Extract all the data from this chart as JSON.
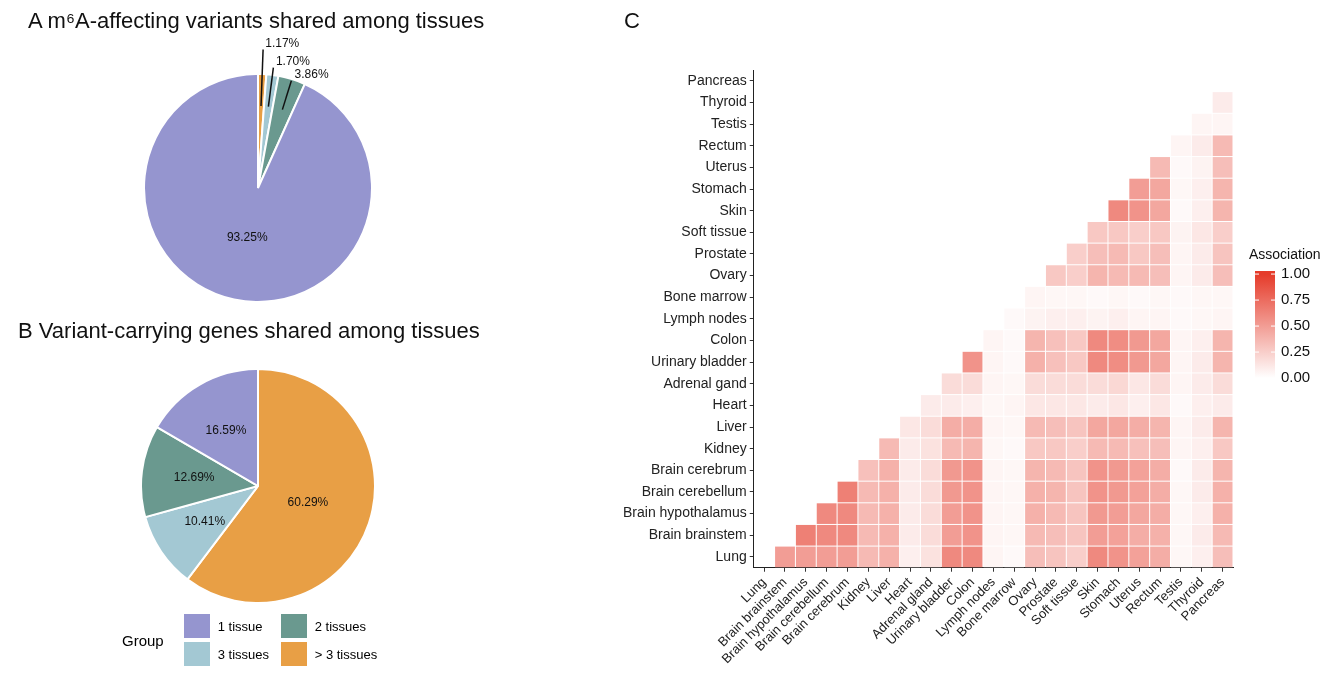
{
  "chart_data": [
    {
      "type": "pie",
      "title": "A  m⁶A-affecting variants shared among tissues",
      "values": [
        93.25,
        3.86,
        1.7,
        1.17
      ],
      "colors": [
        "#9595cf",
        "#6a998f",
        "#a3c8d3",
        "#e89f45"
      ],
      "value_labels": [
        "93.25%",
        "3.86%",
        "1.70%",
        "1.17%"
      ]
    },
    {
      "type": "pie",
      "title": "B  Variant-carrying genes shared among tissues",
      "categories": [
        "1 tissue",
        "2 tissues",
        "3 tissues",
        "> 3 tissues"
      ],
      "values": [
        16.59,
        12.69,
        10.41,
        60.29
      ],
      "colors": [
        "#9595cf",
        "#6a998f",
        "#a3c8d3",
        "#e89f45"
      ],
      "value_labels": [
        "16.59%",
        "12.69%",
        "10.41%",
        "60.29%"
      ],
      "legend": "bottom",
      "legend_title": "Group"
    },
    {
      "type": "heatmap",
      "title": "C",
      "clabel": "Association",
      "clim": [
        0,
        1
      ],
      "cticks": [
        {
          "value": 0,
          "label": "0.00"
        },
        0.25,
        {
          "value": 0.5,
          "label": "0.50"
        },
        0.75,
        {
          "value": 1,
          "label": "1.00"
        }
      ],
      "color": "#e53b2a",
      "categories": [
        "Lung",
        "Brain brainstem",
        "Brain hypothalamus",
        "Brain cerebellum",
        "Brain cerebrum",
        "Kidney",
        "Liver",
        "Heart",
        "Adrenal gland",
        "Urinary bladder",
        "Colon",
        "Lymph nodes",
        "Bone marrow",
        "Ovary",
        "Prostate",
        "Soft tissue",
        "Skin",
        "Stomach",
        "Uterus",
        "Rectum",
        "Testis",
        "Thyroid",
        "Pancreas"
      ],
      "y_categories": [
        "Pancreas",
        "Thyroid",
        "Testis",
        "Rectum",
        "Uterus",
        "Stomach",
        "Skin",
        "Soft tissue",
        "Prostate",
        "Ovary",
        "Bone marrow",
        "Lymph nodes",
        "Colon",
        "Urinary bladder",
        "Adrenal gand",
        "Heart",
        "Liver",
        "Kidney",
        "Brain cerebrum",
        "Brain cerebellum",
        "Brain hypothalamus",
        "Brain brainstem",
        "Lung"
      ],
      "cells": [
        [
          null,
          null,
          null,
          null,
          null,
          null,
          null,
          null,
          null,
          null,
          null,
          null,
          null,
          null,
          null,
          null,
          null,
          null,
          null,
          null,
          null,
          null,
          null
        ],
        [
          null,
          null,
          null,
          null,
          null,
          null,
          null,
          null,
          null,
          null,
          null,
          null,
          null,
          null,
          null,
          null,
          null,
          null,
          null,
          null,
          null,
          null,
          0.1
        ],
        [
          null,
          null,
          null,
          null,
          null,
          null,
          null,
          null,
          null,
          null,
          null,
          null,
          null,
          null,
          null,
          null,
          null,
          null,
          null,
          null,
          null,
          0.05,
          0.05
        ],
        [
          null,
          null,
          null,
          null,
          null,
          null,
          null,
          null,
          null,
          null,
          null,
          null,
          null,
          null,
          null,
          null,
          null,
          null,
          null,
          null,
          0.05,
          0.1,
          0.35
        ],
        [
          null,
          null,
          null,
          null,
          null,
          null,
          null,
          null,
          null,
          null,
          null,
          null,
          null,
          null,
          null,
          null,
          null,
          null,
          null,
          0.35,
          0.03,
          0.06,
          0.33
        ],
        [
          null,
          null,
          null,
          null,
          null,
          null,
          null,
          null,
          null,
          null,
          null,
          null,
          null,
          null,
          null,
          null,
          null,
          null,
          0.5,
          0.45,
          0.04,
          0.08,
          0.38
        ],
        [
          null,
          null,
          null,
          null,
          null,
          null,
          null,
          null,
          null,
          null,
          null,
          null,
          null,
          null,
          null,
          null,
          null,
          0.6,
          0.55,
          0.45,
          0.03,
          0.08,
          0.38
        ],
        [
          null,
          null,
          null,
          null,
          null,
          null,
          null,
          null,
          null,
          null,
          null,
          null,
          null,
          null,
          null,
          null,
          0.28,
          0.28,
          0.25,
          0.28,
          0.06,
          0.12,
          0.25
        ],
        [
          null,
          null,
          null,
          null,
          null,
          null,
          null,
          null,
          null,
          null,
          null,
          null,
          null,
          null,
          null,
          0.25,
          0.33,
          0.35,
          0.28,
          0.33,
          0.05,
          0.1,
          0.3
        ],
        [
          null,
          null,
          null,
          null,
          null,
          null,
          null,
          null,
          null,
          null,
          null,
          null,
          null,
          null,
          0.28,
          0.25,
          0.38,
          0.35,
          0.35,
          0.33,
          0.05,
          0.1,
          0.33
        ],
        [
          null,
          null,
          null,
          null,
          null,
          null,
          null,
          null,
          null,
          null,
          null,
          null,
          null,
          0.05,
          0.04,
          0.04,
          0.03,
          0.04,
          0.03,
          0.04,
          0.03,
          0.04,
          0.04
        ],
        [
          null,
          null,
          null,
          null,
          null,
          null,
          null,
          null,
          null,
          null,
          null,
          null,
          0.03,
          0.06,
          0.08,
          0.08,
          0.06,
          0.08,
          0.05,
          0.05,
          0.03,
          0.04,
          0.05
        ],
        [
          null,
          null,
          null,
          null,
          null,
          null,
          null,
          null,
          null,
          null,
          null,
          0.05,
          0.03,
          0.38,
          0.32,
          0.28,
          0.6,
          0.58,
          0.52,
          0.45,
          0.05,
          0.08,
          0.38
        ],
        [
          null,
          null,
          null,
          null,
          null,
          null,
          null,
          null,
          null,
          null,
          0.55,
          0.05,
          0.03,
          0.4,
          0.32,
          0.28,
          0.6,
          0.58,
          0.52,
          0.45,
          0.05,
          0.1,
          0.38
        ],
        [
          null,
          null,
          null,
          null,
          null,
          null,
          null,
          null,
          null,
          0.18,
          0.18,
          0.05,
          0.04,
          0.18,
          0.18,
          0.18,
          0.18,
          0.2,
          0.12,
          0.18,
          0.05,
          0.1,
          0.18
        ],
        [
          null,
          null,
          null,
          null,
          null,
          null,
          null,
          null,
          0.1,
          0.1,
          0.08,
          0.04,
          0.05,
          0.12,
          0.12,
          0.12,
          0.1,
          0.12,
          0.08,
          0.12,
          0.03,
          0.08,
          0.1
        ],
        [
          null,
          null,
          null,
          null,
          null,
          null,
          null,
          0.12,
          0.18,
          0.42,
          0.42,
          0.05,
          0.04,
          0.35,
          0.33,
          0.3,
          0.45,
          0.45,
          0.42,
          0.38,
          0.05,
          0.1,
          0.38
        ],
        [
          null,
          null,
          null,
          null,
          null,
          null,
          0.35,
          0.1,
          0.15,
          0.35,
          0.38,
          0.04,
          0.03,
          0.28,
          0.28,
          0.25,
          0.35,
          0.35,
          0.32,
          0.33,
          0.05,
          0.08,
          0.28
        ],
        [
          null,
          null,
          null,
          null,
          null,
          0.32,
          0.4,
          0.1,
          0.18,
          0.52,
          0.55,
          0.05,
          0.04,
          0.38,
          0.35,
          0.3,
          0.55,
          0.52,
          0.48,
          0.42,
          0.03,
          0.1,
          0.38
        ],
        [
          null,
          null,
          null,
          null,
          0.65,
          0.35,
          0.4,
          0.1,
          0.18,
          0.52,
          0.55,
          0.05,
          0.04,
          0.4,
          0.38,
          0.3,
          0.55,
          0.52,
          0.48,
          0.42,
          0.04,
          0.1,
          0.4
        ],
        [
          null,
          null,
          null,
          0.6,
          0.6,
          0.35,
          0.4,
          0.1,
          0.18,
          0.5,
          0.55,
          0.05,
          0.04,
          0.4,
          0.35,
          0.3,
          0.52,
          0.5,
          0.45,
          0.42,
          0.04,
          0.08,
          0.4
        ],
        [
          null,
          null,
          0.65,
          0.6,
          0.6,
          0.35,
          0.4,
          0.1,
          0.18,
          0.5,
          0.55,
          0.05,
          0.04,
          0.35,
          0.33,
          0.3,
          0.5,
          0.48,
          0.42,
          0.4,
          0.04,
          0.1,
          0.35
        ],
        [
          null,
          0.5,
          0.5,
          0.5,
          0.5,
          0.35,
          0.4,
          0.08,
          0.15,
          0.6,
          0.6,
          0.05,
          0.03,
          0.33,
          0.3,
          0.25,
          0.6,
          0.55,
          0.48,
          0.42,
          0.04,
          0.08,
          0.33
        ]
      ]
    }
  ]
}
